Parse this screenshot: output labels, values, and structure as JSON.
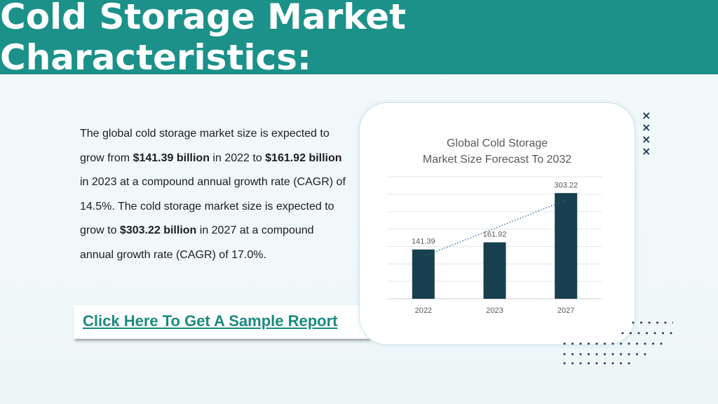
{
  "header": {
    "title": "Cold Storage Market Characteristics:"
  },
  "body": {
    "p1": "The global cold storage market size is expected to grow from ",
    "b1": "$141.39 billion",
    "p2": " in 2022 to ",
    "b2": "$161.92 billion",
    "p3": " in 2023 at a compound annual growth rate (CAGR) of 14.5%. The cold storage market size is expected to grow to ",
    "b3": "$303.22 billion",
    "p4": " in 2027 at a compound annual growth rate (CAGR) of 17.0%."
  },
  "cta": {
    "label": "Click Here To Get A Sample Report"
  },
  "chart_data": {
    "type": "bar",
    "title_line1": "Global Cold Storage",
    "title_line2": "Market Size Forecast To 2032",
    "categories": [
      "2022",
      "2023",
      "2027"
    ],
    "values": [
      141.39,
      161.92,
      303.22
    ],
    "value_labels": [
      "141.39",
      "161.92",
      "303.22"
    ],
    "ylim": [
      0,
      350
    ],
    "grid": true,
    "trendline": "dotted linear",
    "bar_color": "#173f4f",
    "trend_color": "#2e5fa0"
  },
  "colors": {
    "header_bg": "#1b9189",
    "link": "#1b8a7e",
    "decor": "#1d3a5c"
  },
  "decor": {
    "crosses": [
      "×",
      "×",
      "×",
      "×"
    ]
  }
}
